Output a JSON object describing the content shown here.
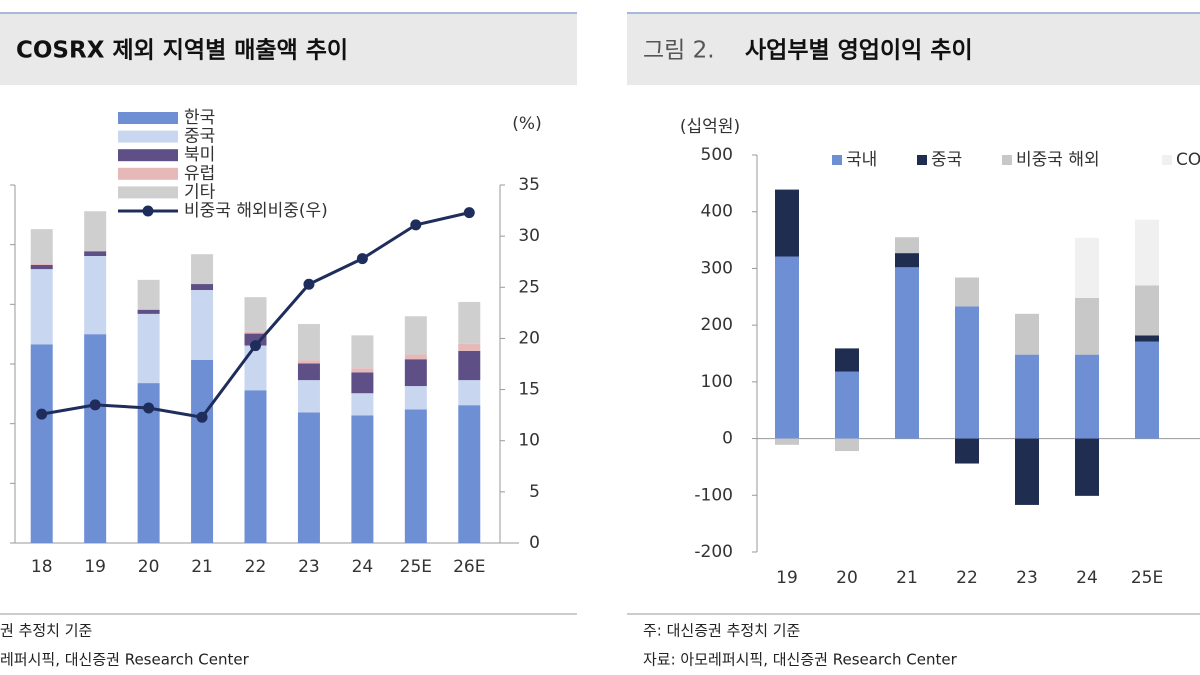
{
  "chart_data": [
    {
      "type": "bar",
      "stacked": true,
      "title": "COSRX 제외 지역별 매출액 추이",
      "y2_label": "(%)",
      "categories": [
        "18",
        "19",
        "20",
        "21",
        "22",
        "23",
        "24",
        "25E",
        "26E"
      ],
      "ylim": [
        0,
        6
      ],
      "yticks": [
        0,
        1,
        2,
        3,
        4,
        5,
        6
      ],
      "y2lim": [
        0,
        35
      ],
      "y2ticks": [
        0,
        5,
        10,
        15,
        20,
        25,
        30,
        35
      ],
      "series": [
        {
          "name": "한국",
          "color": "#6f8fd4",
          "values": [
            3.33,
            3.5,
            2.68,
            3.07,
            2.56,
            2.19,
            2.14,
            2.24,
            2.31
          ]
        },
        {
          "name": "중국",
          "color": "#c9d6f0",
          "values": [
            1.26,
            1.31,
            1.16,
            1.17,
            0.75,
            0.54,
            0.37,
            0.39,
            0.42
          ]
        },
        {
          "name": "북미",
          "color": "#5e4f86",
          "values": [
            0.07,
            0.08,
            0.07,
            0.1,
            0.2,
            0.28,
            0.35,
            0.45,
            0.49
          ]
        },
        {
          "name": "유럽",
          "color": "#e6b8b8",
          "values": [
            0.03,
            0,
            0,
            0,
            0.03,
            0.05,
            0.07,
            0.08,
            0.12
          ]
        },
        {
          "name": "기타",
          "color": "#cfcfcf",
          "values": [
            0.57,
            0.67,
            0.5,
            0.5,
            0.58,
            0.61,
            0.55,
            0.64,
            0.7
          ]
        },
        {
          "name": "비중국 해외비중(우)",
          "type": "line",
          "axis": "y2",
          "color": "#1f2d5c",
          "values": [
            12.6,
            13.5,
            13.2,
            12.3,
            19.3,
            25.3,
            27.8,
            31.1,
            32.3
          ]
        }
      ],
      "notes": [
        "권 추정치 기준",
        "레퍼시픽, 대신증권 Research Center"
      ]
    },
    {
      "type": "bar",
      "stacked": true,
      "figure_label": "그림 2.",
      "title": "사업부별 영업이익 추이",
      "y_label": "(십억원)",
      "categories": [
        "19",
        "20",
        "21",
        "22",
        "23",
        "24",
        "25E"
      ],
      "ylim": [
        -200,
        500
      ],
      "yticks": [
        -200,
        -100,
        0,
        100,
        200,
        300,
        400,
        500
      ],
      "series": [
        {
          "name": "국내",
          "color": "#6f8fd4",
          "values": [
            321,
            118,
            302,
            233,
            148,
            148,
            171
          ]
        },
        {
          "name": "중국",
          "color": "#1f2d50",
          "values": [
            118,
            41,
            25,
            -44,
            -117,
            -101,
            11
          ]
        },
        {
          "name": "비중국 해외",
          "color": "#c8c8c8",
          "values": [
            -11,
            -22,
            28,
            51,
            72,
            100,
            88
          ]
        },
        {
          "name": "COSRX",
          "color": "#f0f0f0",
          "values": [
            0,
            0,
            0,
            0,
            0,
            106,
            116
          ]
        }
      ],
      "notes": [
        "주: 대신증권 추정치 기준",
        "자료: 아모레퍼시픽, 대신증권 Research Center"
      ]
    }
  ]
}
